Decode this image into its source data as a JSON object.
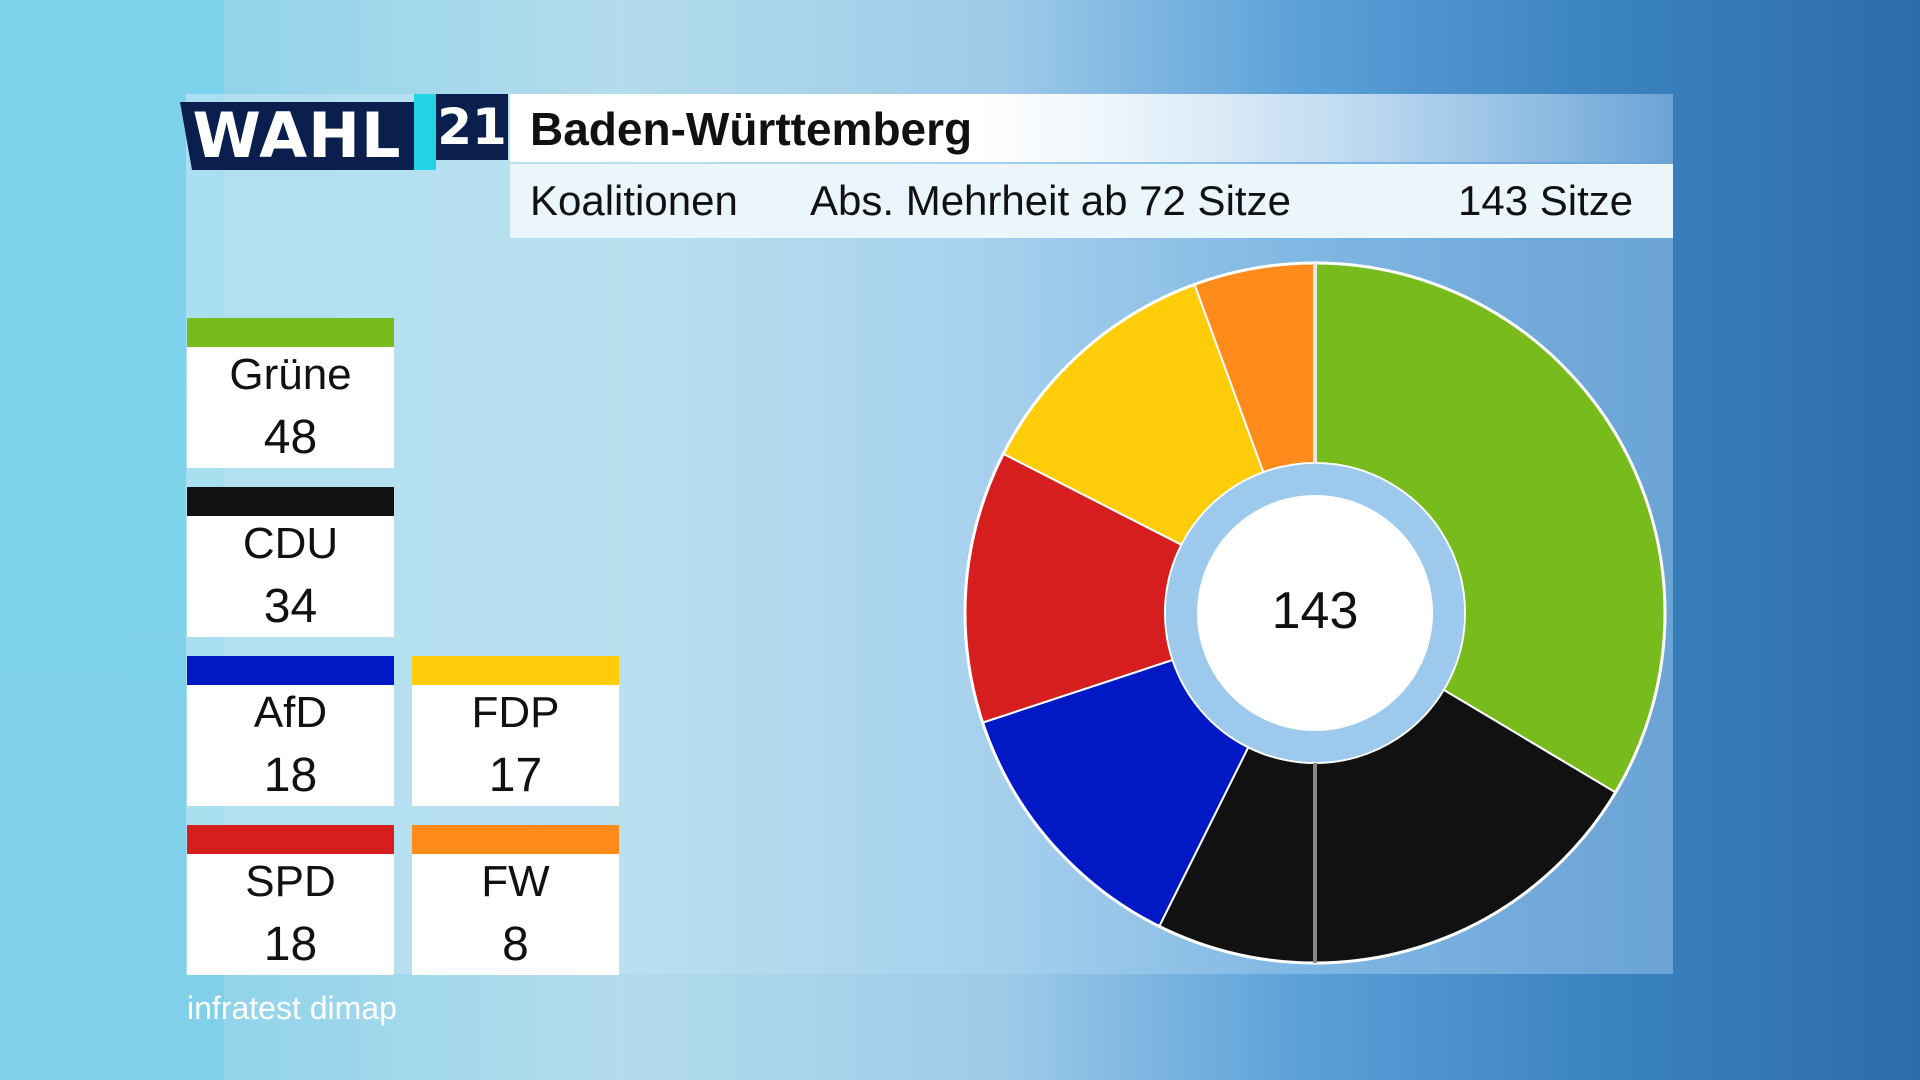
{
  "header": {
    "logo_wahl": "WAHL",
    "logo_year": "21",
    "title": "Baden-Württemberg",
    "subtitle_left": "Koalitionen",
    "subtitle_mid": "Abs. Mehrheit ab 72 Sitze",
    "subtitle_right": "143 Sitze"
  },
  "source": "infratest dimap",
  "chart_data": {
    "type": "pie",
    "style": "donut",
    "total_label": "143",
    "total": 143,
    "majority_threshold": 72,
    "categories": [
      "Grüne",
      "CDU",
      "AfD",
      "SPD",
      "FDP",
      "FW"
    ],
    "values": [
      48,
      34,
      18,
      18,
      17,
      8
    ],
    "colors": [
      "#78bb1c",
      "#111111",
      "#0019c4",
      "#d71e1e",
      "#ffcc0a",
      "#ff8c1a"
    ]
  },
  "legend": [
    {
      "name": "Grüne",
      "seats": "48",
      "color": "#78bb1c"
    },
    {
      "name": "CDU",
      "seats": "34",
      "color": "#111111"
    },
    {
      "name": "AfD",
      "seats": "18",
      "color": "#0019c4"
    },
    {
      "name": "FDP",
      "seats": "17",
      "color": "#ffcc0a"
    },
    {
      "name": "SPD",
      "seats": "18",
      "color": "#d71e1e"
    },
    {
      "name": "FW",
      "seats": "8",
      "color": "#ff8c1a"
    }
  ]
}
